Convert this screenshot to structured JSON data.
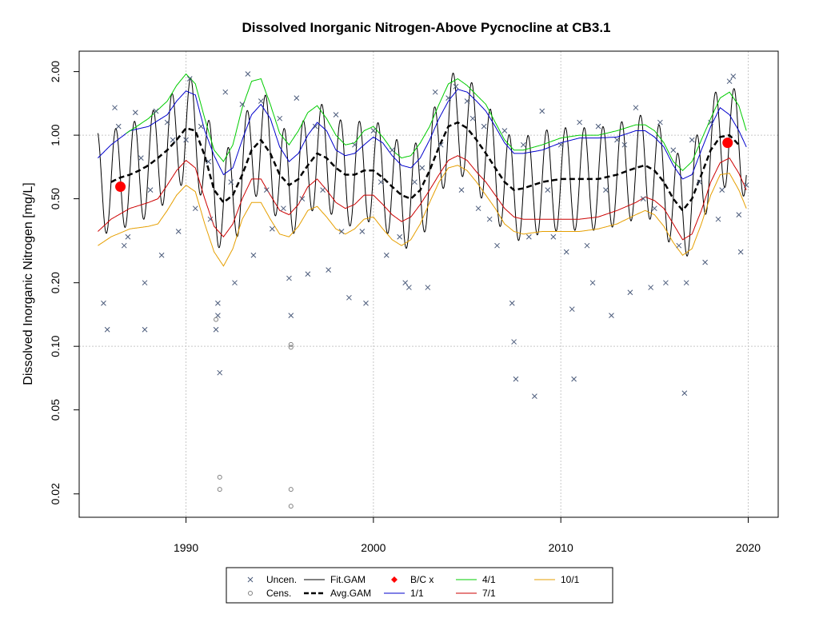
{
  "chart_data": {
    "type": "line",
    "title": "Dissolved Inorganic Nitrogen-Above Pycnocline at CB3.1",
    "xlabel": "",
    "ylabel": "Dissolved Inorganic Nitrogen [mg/L]",
    "y_scale": "log",
    "xlim": [
      1984.3,
      2021.6
    ],
    "ylim": [
      0.0155,
      2.5
    ],
    "grid": true,
    "x_ticks": [
      {
        "value": 1990,
        "label": "1990"
      },
      {
        "value": 2000,
        "label": "2000"
      },
      {
        "value": 2010,
        "label": "2010"
      },
      {
        "value": 2020,
        "label": "2020"
      }
    ],
    "y_ticks": [
      {
        "value": 0.02,
        "label": "0.02"
      },
      {
        "value": 0.05,
        "label": "0.05"
      },
      {
        "value": 0.1,
        "label": "0.10"
      },
      {
        "value": 0.2,
        "label": "0.20"
      },
      {
        "value": 0.5,
        "label": "0.50"
      },
      {
        "value": 1.0,
        "label": "1.00"
      },
      {
        "value": 2.0,
        "label": "2.00"
      }
    ],
    "grid_x": [
      1990,
      2000,
      2010,
      2020
    ],
    "grid_y": [
      0.1,
      1.0
    ],
    "legend": {
      "position": "bottom",
      "entries": [
        {
          "label": "Uncen.",
          "symbol": "x",
          "color": "#4a5a7a"
        },
        {
          "label": "Cens.",
          "symbol": "o",
          "color": "#808080"
        },
        {
          "label": "Fit.GAM",
          "symbol": "line",
          "color": "#000000"
        },
        {
          "label": "Avg.GAM",
          "symbol": "dashed",
          "color": "#000000"
        },
        {
          "label": "B/C x",
          "symbol": "diamond",
          "color": "#ff0000"
        },
        {
          "label": "1/1",
          "symbol": "line",
          "color": "#0000cc"
        },
        {
          "label": "4/1",
          "symbol": "line",
          "color": "#00cc00"
        },
        {
          "label": "7/1",
          "symbol": "line",
          "color": "#cc0000"
        },
        {
          "label": "10/1",
          "symbol": "line",
          "color": "#e69f00"
        }
      ]
    },
    "series": [
      {
        "name": "1/1",
        "color": "#0000cc",
        "x": [
          1985.3,
          1986,
          1987,
          1988,
          1989,
          1989.5,
          1990,
          1990.5,
          1991,
          1991.5,
          1992,
          1992.5,
          1993,
          1993.5,
          1994,
          1994.5,
          1995,
          1995.5,
          1996,
          1996.5,
          1997,
          1997.5,
          1998,
          1998.5,
          1999,
          1999.5,
          2000,
          2000.5,
          2001,
          2001.5,
          2002,
          2002.5,
          2003,
          2003.5,
          2004,
          2004.5,
          2005,
          2005.5,
          2006,
          2006.5,
          2007,
          2007.5,
          2008,
          2009,
          2010,
          2011,
          2012,
          2013,
          2014,
          2014.5,
          2015,
          2015.5,
          2016,
          2016.5,
          2017,
          2017.5,
          2018,
          2018.5,
          2019,
          2019.5,
          2019.9
        ],
        "y": [
          0.78,
          0.9,
          1.05,
          1.1,
          1.25,
          1.45,
          1.62,
          1.55,
          1.05,
          0.8,
          0.65,
          0.7,
          0.95,
          1.25,
          1.4,
          1.2,
          0.88,
          0.75,
          0.82,
          1.0,
          1.15,
          1.05,
          0.85,
          0.8,
          0.82,
          0.9,
          0.98,
          0.92,
          0.8,
          0.72,
          0.7,
          0.78,
          0.95,
          1.2,
          1.45,
          1.65,
          1.6,
          1.45,
          1.3,
          1.1,
          0.92,
          0.82,
          0.82,
          0.85,
          0.92,
          0.97,
          0.97,
          0.98,
          1.05,
          1.05,
          0.98,
          0.88,
          0.72,
          0.62,
          0.65,
          0.85,
          1.1,
          1.35,
          1.25,
          1.05,
          0.88
        ]
      },
      {
        "name": "4/1",
        "color": "#00cc00",
        "x": [
          1986.8,
          1987.5,
          1988,
          1989,
          1989.5,
          1990,
          1990.5,
          1991,
          1991.5,
          1992,
          1992.5,
          1993,
          1993.5,
          1994,
          1994.5,
          1995,
          1995.5,
          1996,
          1996.5,
          1997,
          1997.5,
          1998,
          1998.5,
          1999,
          1999.5,
          2000,
          2000.5,
          2001,
          2001.5,
          2002,
          2002.5,
          2003,
          2003.5,
          2004,
          2004.5,
          2005,
          2005.5,
          2006,
          2006.5,
          2007,
          2007.5,
          2008,
          2009,
          2010,
          2011,
          2012,
          2013,
          2014,
          2014.5,
          2015,
          2015.5,
          2016,
          2016.5,
          2017,
          2017.5,
          2018,
          2018.5,
          2019,
          2019.5,
          2019.9
        ],
        "y": [
          1.02,
          1.12,
          1.2,
          1.45,
          1.72,
          1.95,
          1.75,
          1.2,
          0.85,
          0.75,
          0.9,
          1.35,
          1.8,
          1.85,
          1.4,
          1.02,
          0.9,
          1.05,
          1.28,
          1.38,
          1.2,
          1.0,
          0.9,
          0.92,
          1.05,
          1.1,
          0.98,
          0.85,
          0.78,
          0.8,
          0.92,
          1.1,
          1.4,
          1.75,
          1.85,
          1.72,
          1.55,
          1.4,
          1.15,
          0.95,
          0.85,
          0.85,
          0.9,
          0.97,
          1.0,
          1.0,
          1.05,
          1.12,
          1.12,
          1.05,
          0.92,
          0.75,
          0.68,
          0.75,
          0.95,
          1.2,
          1.5,
          1.6,
          1.38,
          1.05
        ]
      },
      {
        "name": "7/1",
        "color": "#cc0000",
        "x": [
          1985.3,
          1986,
          1987,
          1988,
          1988.5,
          1989,
          1989.5,
          1990,
          1990.5,
          1991,
          1991.5,
          1992,
          1992.5,
          1993,
          1993.5,
          1994,
          1994.5,
          1995,
          1995.5,
          1996,
          1996.5,
          1997,
          1997.5,
          1998,
          1998.5,
          1999,
          1999.5,
          2000,
          2000.5,
          2001,
          2001.5,
          2002,
          2002.5,
          2003,
          2003.5,
          2004,
          2004.5,
          2005,
          2005.5,
          2006,
          2006.5,
          2007,
          2007.5,
          2008,
          2009,
          2010,
          2011,
          2012,
          2013,
          2014,
          2014.5,
          2015,
          2015.5,
          2016,
          2016.5,
          2017,
          2017.5,
          2018,
          2018.5,
          2019,
          2019.5,
          2019.9
        ],
        "y": [
          0.35,
          0.4,
          0.45,
          0.48,
          0.5,
          0.58,
          0.68,
          0.76,
          0.7,
          0.5,
          0.37,
          0.33,
          0.38,
          0.5,
          0.62,
          0.62,
          0.52,
          0.44,
          0.42,
          0.47,
          0.57,
          0.62,
          0.55,
          0.48,
          0.45,
          0.47,
          0.52,
          0.52,
          0.47,
          0.42,
          0.39,
          0.41,
          0.47,
          0.55,
          0.65,
          0.76,
          0.8,
          0.76,
          0.67,
          0.6,
          0.52,
          0.45,
          0.41,
          0.4,
          0.4,
          0.4,
          0.4,
          0.41,
          0.44,
          0.48,
          0.51,
          0.49,
          0.45,
          0.38,
          0.32,
          0.34,
          0.44,
          0.6,
          0.74,
          0.78,
          0.66,
          0.55
        ]
      },
      {
        "name": "10/1",
        "color": "#e69f00",
        "x": [
          1985.3,
          1986,
          1987,
          1988,
          1988.5,
          1989,
          1989.5,
          1990,
          1990.5,
          1991,
          1991.5,
          1992,
          1992.5,
          1993,
          1993.5,
          1994,
          1994.5,
          1995,
          1995.5,
          1996,
          1996.5,
          1997,
          1997.5,
          1998,
          1998.5,
          1999,
          1999.5,
          2000,
          2000.5,
          2001,
          2001.5,
          2002,
          2002.5,
          2003,
          2003.5,
          2004,
          2004.5,
          2005,
          2005.5,
          2006,
          2006.5,
          2007,
          2007.5,
          2008,
          2009,
          2010,
          2011,
          2012,
          2013,
          2014,
          2014.5,
          2015,
          2015.5,
          2016,
          2016.5,
          2017,
          2017.5,
          2018,
          2018.5,
          2019,
          2019.5,
          2019.9
        ],
        "y": [
          0.3,
          0.33,
          0.36,
          0.37,
          0.38,
          0.44,
          0.52,
          0.58,
          0.54,
          0.38,
          0.28,
          0.24,
          0.29,
          0.4,
          0.48,
          0.48,
          0.4,
          0.34,
          0.33,
          0.37,
          0.44,
          0.46,
          0.41,
          0.36,
          0.34,
          0.36,
          0.4,
          0.41,
          0.36,
          0.32,
          0.3,
          0.32,
          0.38,
          0.48,
          0.6,
          0.7,
          0.72,
          0.68,
          0.6,
          0.52,
          0.45,
          0.38,
          0.35,
          0.34,
          0.35,
          0.35,
          0.35,
          0.36,
          0.38,
          0.42,
          0.44,
          0.42,
          0.37,
          0.31,
          0.27,
          0.29,
          0.38,
          0.52,
          0.65,
          0.66,
          0.55,
          0.45
        ]
      },
      {
        "name": "Avg.GAM",
        "color": "#000000",
        "dashed": true,
        "x": [
          1986,
          1986.5,
          1987,
          1987.5,
          1988,
          1988.5,
          1989,
          1989.5,
          1990,
          1990.5,
          1991,
          1991.5,
          1992,
          1992.5,
          1993,
          1993.5,
          1994,
          1994.5,
          1995,
          1995.5,
          1996,
          1996.5,
          1997,
          1997.5,
          1998,
          1998.5,
          1999,
          1999.5,
          2000,
          2000.5,
          2001,
          2001.5,
          2002,
          2002.5,
          2003,
          2003.5,
          2004,
          2004.5,
          2005,
          2005.5,
          2006,
          2006.5,
          2007,
          2007.5,
          2008,
          2009,
          2010,
          2011,
          2012,
          2013,
          2014,
          2014.5,
          2015,
          2015.5,
          2016,
          2016.5,
          2017,
          2017.5,
          2018,
          2018.5,
          2019,
          2019.5
        ],
        "y": [
          0.6,
          0.63,
          0.65,
          0.68,
          0.72,
          0.78,
          0.85,
          0.95,
          1.08,
          1.05,
          0.8,
          0.55,
          0.48,
          0.52,
          0.65,
          0.85,
          0.95,
          0.82,
          0.65,
          0.58,
          0.62,
          0.72,
          0.82,
          0.78,
          0.7,
          0.65,
          0.65,
          0.68,
          0.68,
          0.63,
          0.57,
          0.52,
          0.5,
          0.55,
          0.68,
          0.88,
          1.1,
          1.15,
          1.08,
          0.95,
          0.82,
          0.7,
          0.6,
          0.55,
          0.56,
          0.6,
          0.62,
          0.62,
          0.62,
          0.65,
          0.7,
          0.72,
          0.68,
          0.6,
          0.5,
          0.44,
          0.5,
          0.65,
          0.85,
          0.98,
          1.0,
          0.9
        ]
      }
    ],
    "fit_gam": {
      "name": "Fit.GAM",
      "color": "#000000",
      "x_start": 1985.3,
      "x_end": 2019.9,
      "amplitude_factor": 1.75
    },
    "bc_points": [
      {
        "x": 1986.5,
        "y": 0.57
      },
      {
        "x": 2018.9,
        "y": 0.92
      }
    ],
    "uncensored_points": [
      [
        1985.6,
        0.16
      ],
      [
        1985.8,
        0.12
      ],
      [
        1986.2,
        1.35
      ],
      [
        1986.4,
        1.1
      ],
      [
        1986.7,
        0.3
      ],
      [
        1986.9,
        0.33
      ],
      [
        1987.3,
        1.28
      ],
      [
        1987.6,
        0.78
      ],
      [
        1987.8,
        0.12
      ],
      [
        1987.8,
        0.2
      ],
      [
        1988.1,
        0.55
      ],
      [
        1988.4,
        1.3
      ],
      [
        1988.7,
        0.27
      ],
      [
        1989.0,
        1.15
      ],
      [
        1989.3,
        0.95
      ],
      [
        1989.6,
        0.35
      ],
      [
        1990.0,
        0.95
      ],
      [
        1990.2,
        1.85
      ],
      [
        1990.5,
        0.45
      ],
      [
        1990.8,
        1.1
      ],
      [
        1991.2,
        0.75
      ],
      [
        1991.3,
        0.4
      ],
      [
        1991.6,
        0.12
      ],
      [
        1991.7,
        0.16
      ],
      [
        1991.7,
        0.14
      ],
      [
        1991.8,
        0.075
      ],
      [
        1992.1,
        1.6
      ],
      [
        1992.4,
        0.6
      ],
      [
        1992.6,
        0.2
      ],
      [
        1993.0,
        1.4
      ],
      [
        1993.3,
        1.95
      ],
      [
        1993.6,
        0.27
      ],
      [
        1994.0,
        1.45
      ],
      [
        1994.3,
        0.55
      ],
      [
        1994.6,
        0.36
      ],
      [
        1995.0,
        1.2
      ],
      [
        1995.2,
        0.45
      ],
      [
        1995.5,
        0.21
      ],
      [
        1995.6,
        0.14
      ],
      [
        1995.9,
        1.5
      ],
      [
        1996.2,
        0.5
      ],
      [
        1996.5,
        0.22
      ],
      [
        1996.9,
        1.1
      ],
      [
        1997.3,
        0.55
      ],
      [
        1997.6,
        0.23
      ],
      [
        1998.0,
        1.25
      ],
      [
        1998.3,
        0.35
      ],
      [
        1998.7,
        0.17
      ],
      [
        1999.0,
        0.9
      ],
      [
        1999.4,
        0.35
      ],
      [
        1999.6,
        0.16
      ],
      [
        2000.0,
        1.05
      ],
      [
        2000.4,
        0.6
      ],
      [
        2000.7,
        0.27
      ],
      [
        2001.0,
        0.85
      ],
      [
        2001.4,
        0.33
      ],
      [
        2001.7,
        0.2
      ],
      [
        2001.9,
        0.19
      ],
      [
        2002.2,
        0.6
      ],
      [
        2002.6,
        0.7
      ],
      [
        2002.9,
        0.19
      ],
      [
        2003.3,
        1.6
      ],
      [
        2003.6,
        0.9
      ],
      [
        2004.0,
        1.5
      ],
      [
        2004.4,
        1.7
      ],
      [
        2004.7,
        0.55
      ],
      [
        2005.0,
        1.45
      ],
      [
        2005.3,
        1.2
      ],
      [
        2005.6,
        0.45
      ],
      [
        2005.9,
        1.1
      ],
      [
        2006.2,
        0.4
      ],
      [
        2006.6,
        0.3
      ],
      [
        2007.0,
        1.05
      ],
      [
        2007.4,
        0.16
      ],
      [
        2007.5,
        0.105
      ],
      [
        2007.6,
        0.07
      ],
      [
        2008.0,
        0.9
      ],
      [
        2008.3,
        0.33
      ],
      [
        2008.6,
        0.058
      ],
      [
        2009.0,
        1.3
      ],
      [
        2009.3,
        0.55
      ],
      [
        2009.6,
        0.33
      ],
      [
        2010.0,
        0.9
      ],
      [
        2010.3,
        0.28
      ],
      [
        2010.6,
        0.15
      ],
      [
        2010.7,
        0.07
      ],
      [
        2011.0,
        1.15
      ],
      [
        2011.4,
        0.3
      ],
      [
        2011.7,
        0.2
      ],
      [
        2012.0,
        1.1
      ],
      [
        2012.4,
        0.55
      ],
      [
        2012.7,
        0.14
      ],
      [
        2013.0,
        0.95
      ],
      [
        2013.4,
        0.9
      ],
      [
        2013.7,
        0.18
      ],
      [
        2014.0,
        1.35
      ],
      [
        2014.4,
        0.5
      ],
      [
        2014.8,
        0.19
      ],
      [
        2015.0,
        0.45
      ],
      [
        2015.3,
        1.15
      ],
      [
        2015.6,
        0.2
      ],
      [
        2016.0,
        0.85
      ],
      [
        2016.3,
        0.3
      ],
      [
        2016.6,
        0.06
      ],
      [
        2016.7,
        0.2
      ],
      [
        2017.0,
        0.95
      ],
      [
        2017.4,
        0.6
      ],
      [
        2017.7,
        0.25
      ],
      [
        2018.0,
        1.15
      ],
      [
        2018.4,
        0.4
      ],
      [
        2018.6,
        0.55
      ],
      [
        2019.0,
        1.8
      ],
      [
        2019.2,
        1.9
      ],
      [
        2019.5,
        0.42
      ],
      [
        2019.6,
        0.28
      ],
      [
        2019.9,
        0.58
      ]
    ],
    "censored_points": [
      [
        1991.6,
        0.134
      ],
      [
        1991.8,
        0.024
      ],
      [
        1991.8,
        0.021
      ],
      [
        1995.6,
        0.102
      ],
      [
        1995.6,
        0.099
      ],
      [
        1995.6,
        0.021
      ],
      [
        1995.6,
        0.0175
      ]
    ]
  }
}
